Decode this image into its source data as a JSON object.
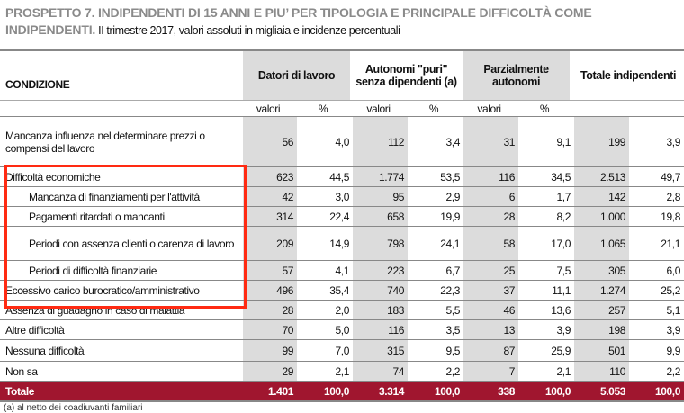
{
  "title": {
    "bold": "PROSPETTO 7. INDIPENDENTI DI 15 ANNI E PIU’ PER TIPOLOGIA E PRINCIPALE DIFFICOLTÀ COME INDIPENDENTI.",
    "subtitle": " II trimestre 2017, valori assoluti in migliaia e incidenze percentuali"
  },
  "header": {
    "condizione": "CONDIZIONE",
    "groups": [
      "Datori di lavoro",
      "Autonomi \"puri\" senza dipendenti (a)",
      "Parzialmente autonomi",
      "Totale indipendenti"
    ],
    "sub": [
      "valori",
      "%",
      "valori",
      "%",
      "valori",
      "%",
      "",
      ""
    ]
  },
  "rows": [
    {
      "label": "Mancanza influenza nel determinare prezzi o compensi del lavoro",
      "values": [
        "56",
        "4,0",
        "112",
        "3,4",
        "31",
        "9,1",
        "199",
        "3,9"
      ]
    },
    {
      "label": "Difficoltà economiche",
      "values": [
        "623",
        "44,5",
        "1.774",
        "53,5",
        "116",
        "34,5",
        "2.513",
        "49,7"
      ]
    },
    {
      "label": "Mancanza di finanziamenti per l'attività",
      "values": [
        "42",
        "3,0",
        "95",
        "2,9",
        "6",
        "1,7",
        "142",
        "2,8"
      ]
    },
    {
      "label": "Pagamenti ritardati o mancanti",
      "values": [
        "314",
        "22,4",
        "658",
        "19,9",
        "28",
        "8,2",
        "1.000",
        "19,8"
      ]
    },
    {
      "label": "Periodi con assenza clienti o carenza di lavoro",
      "values": [
        "209",
        "14,9",
        "798",
        "24,1",
        "58",
        "17,0",
        "1.065",
        "21,1"
      ]
    },
    {
      "label": "Periodi di difficoltà finanziarie",
      "values": [
        "57",
        "4,1",
        "223",
        "6,7",
        "25",
        "7,5",
        "305",
        "6,0"
      ]
    },
    {
      "label": "Eccessivo carico burocratico/amministrativo",
      "values": [
        "496",
        "35,4",
        "740",
        "22,3",
        "37",
        "11,1",
        "1.274",
        "25,2"
      ]
    },
    {
      "label": "Assenza di guadagno in caso di malattia",
      "values": [
        "28",
        "2,0",
        "183",
        "5,5",
        "46",
        "13,6",
        "257",
        "5,1"
      ]
    },
    {
      "label": "Altre difficoltà",
      "values": [
        "70",
        "5,0",
        "116",
        "3,5",
        "13",
        "3,9",
        "198",
        "3,9"
      ]
    },
    {
      "label": "Nessuna difficoltà",
      "values": [
        "99",
        "7,0",
        "315",
        "9,5",
        "87",
        "25,9",
        "501",
        "9,9"
      ]
    },
    {
      "label": "Non sa",
      "values": [
        "29",
        "2,1",
        "74",
        "2,2",
        "7",
        "2,1",
        "110",
        "2,2"
      ]
    }
  ],
  "total": {
    "label": "Totale",
    "values": [
      "1.401",
      "100,0",
      "3.314",
      "100,0",
      "338",
      "100,0",
      "5.053",
      "100,0"
    ]
  },
  "footnote": "(a) al netto dei coadiuvanti familiari",
  "colors": {
    "title": "#8a8a8a",
    "total_bg": "#a0162f",
    "highlight_box": "#ff2a12",
    "shade": "#dcdcdc"
  }
}
